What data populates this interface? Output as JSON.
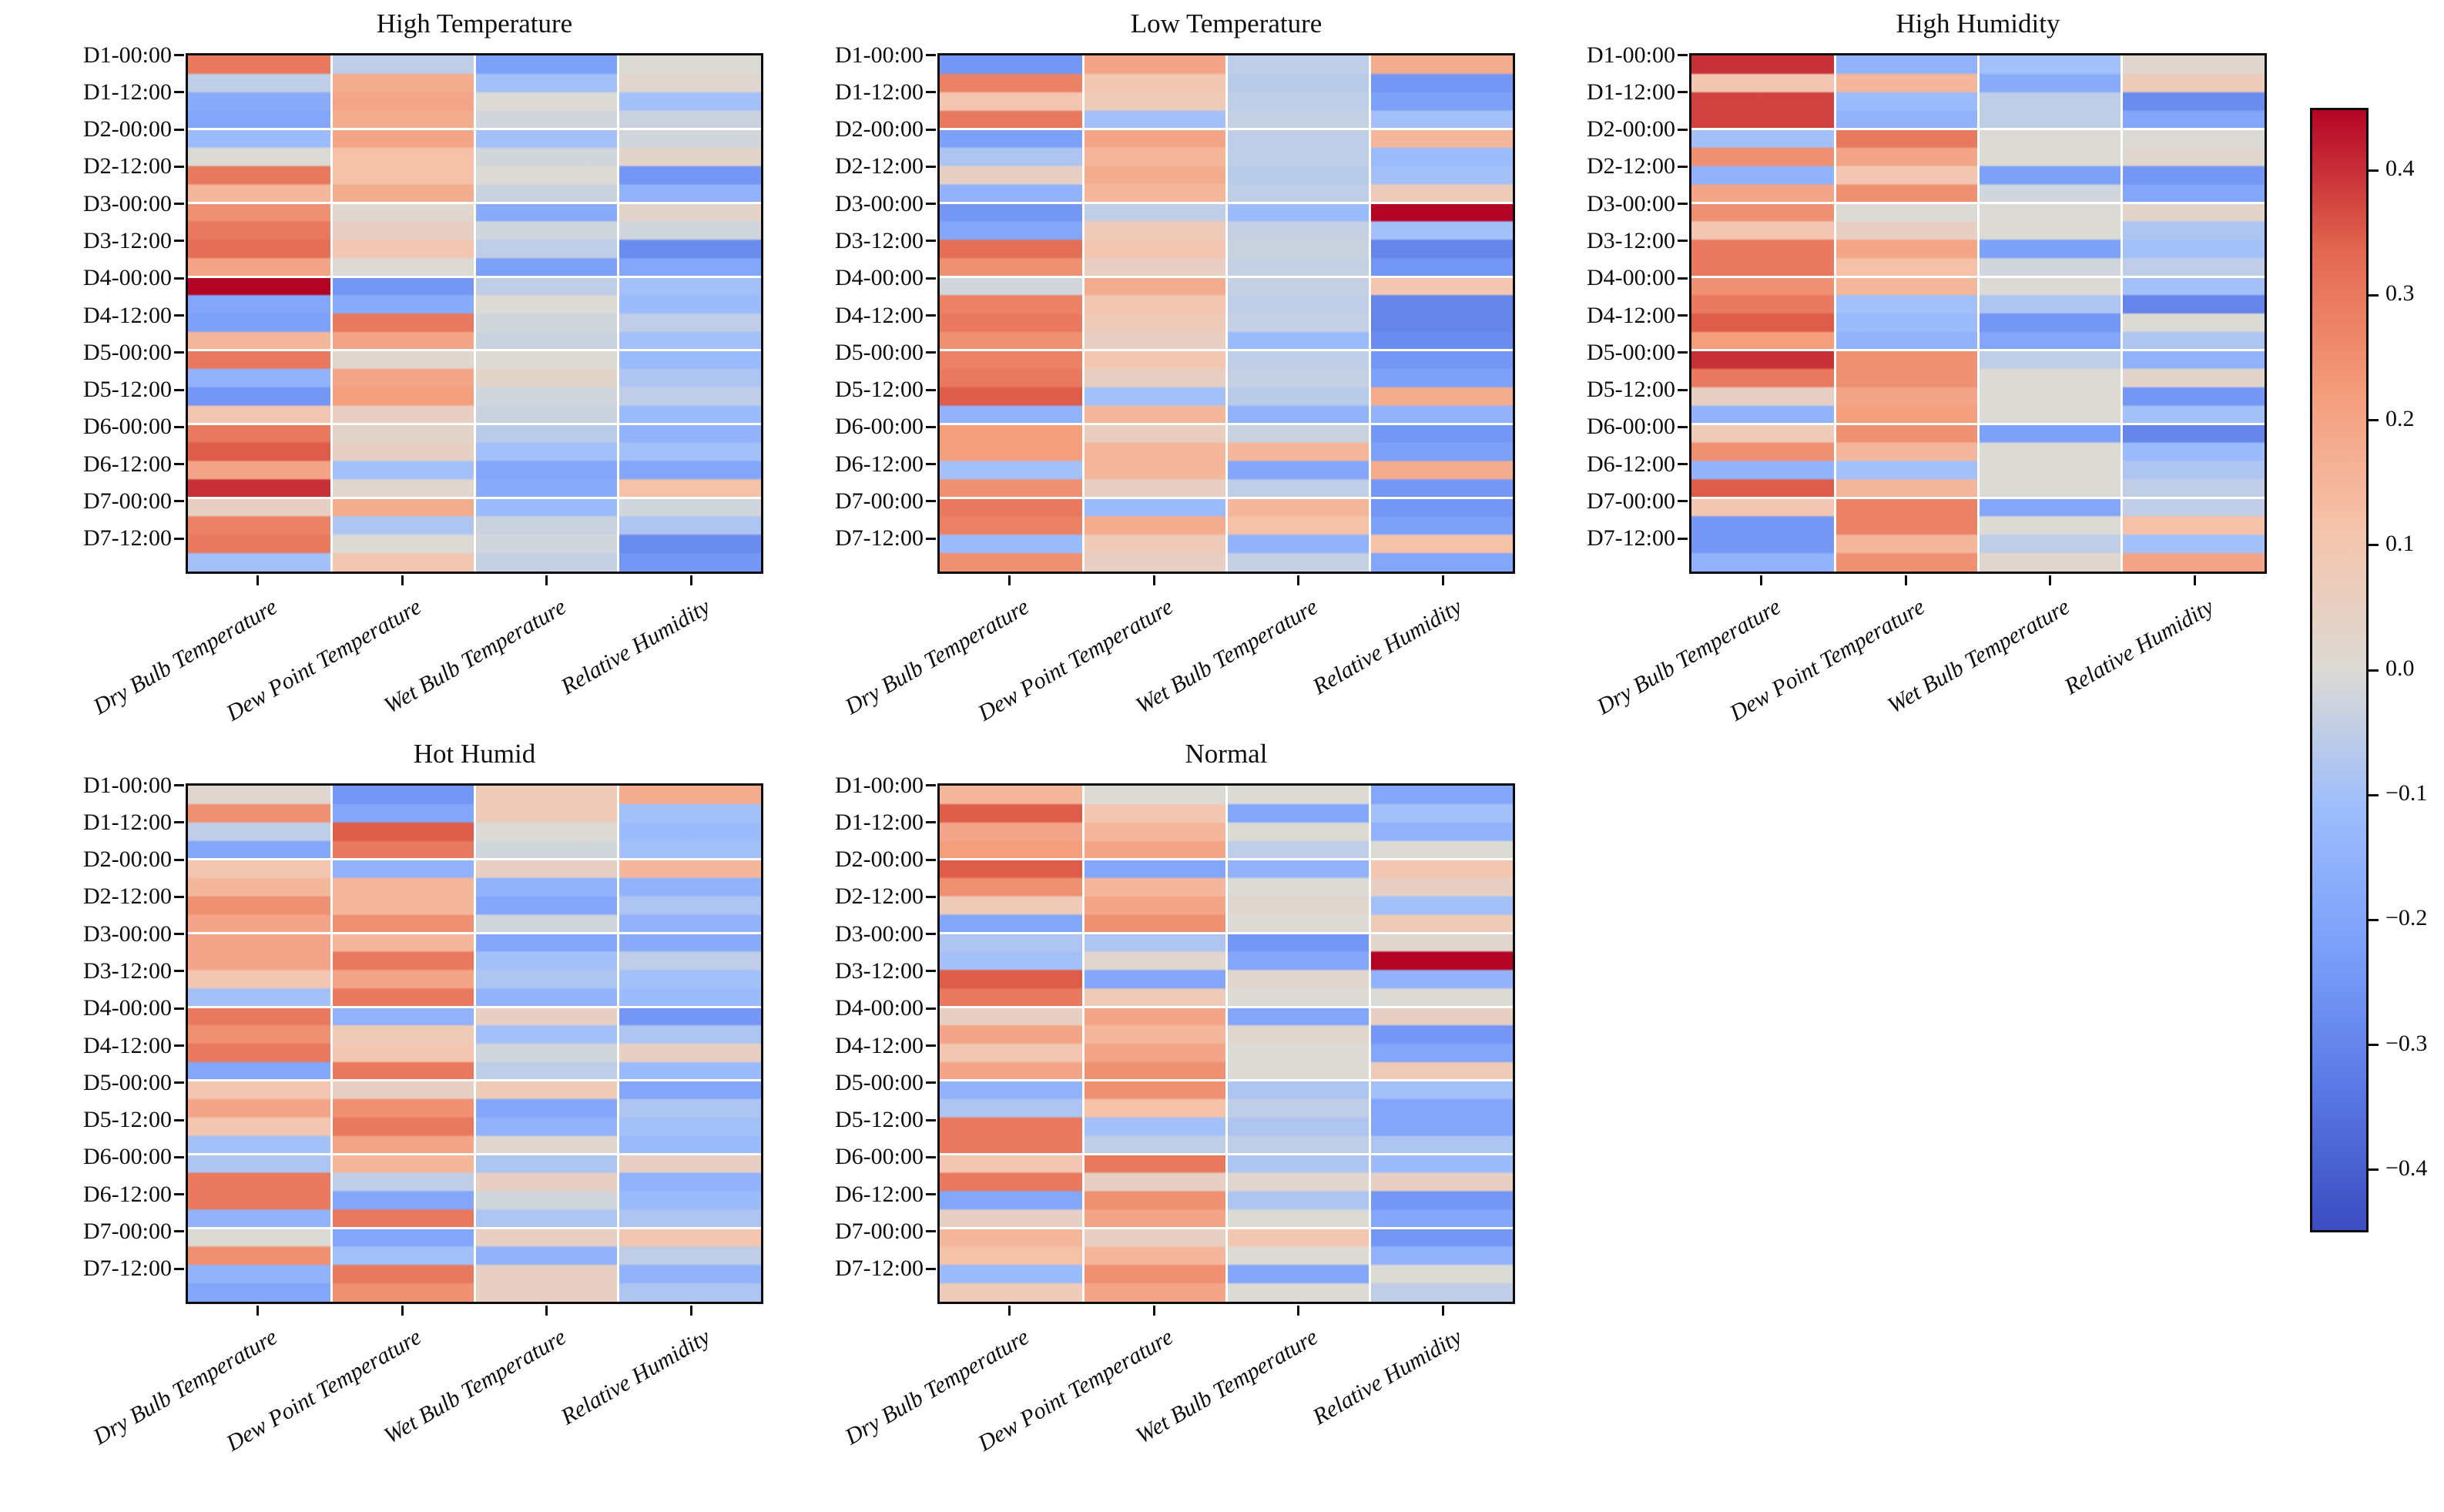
{
  "chart_data": {
    "type": "heatmap",
    "colormap": "coolwarm",
    "value_range": [
      -0.45,
      0.45
    ],
    "row_step_hours": 6,
    "days": 7,
    "grid": "off",
    "legend": "shared right colorbar",
    "colormap_anchors": [
      {
        "t": 0.0,
        "color": "#3b4cc0"
      },
      {
        "t": 0.125,
        "color": "#5a78e4"
      },
      {
        "t": 0.25,
        "color": "#7b9ff9"
      },
      {
        "t": 0.375,
        "color": "#9dbdfc"
      },
      {
        "t": 0.5,
        "color": "#dcdad5"
      },
      {
        "t": 0.625,
        "color": "#f5c4ac"
      },
      {
        "t": 0.75,
        "color": "#f49c7c"
      },
      {
        "t": 0.875,
        "color": "#e2674f"
      },
      {
        "t": 1.0,
        "color": "#b40426"
      }
    ],
    "colorbar": {
      "tick_values": [
        0.4,
        0.3,
        0.2,
        0.1,
        0.0,
        -0.1,
        -0.2,
        -0.3,
        -0.4
      ],
      "tick_labels": [
        "0.4",
        "0.3",
        "0.2",
        "0.1",
        "0.0",
        "−0.1",
        "−0.2",
        "−0.3",
        "−0.4"
      ]
    },
    "x_categories": [
      "Dry Bulb Temperature",
      "Dew Point Temperature",
      "Wet Bulb Temperature",
      "Relative Humidity"
    ],
    "y_tick_labels": [
      "D1-00:00",
      "D1-12:00",
      "D2-00:00",
      "D2-12:00",
      "D3-00:00",
      "D3-12:00",
      "D4-00:00",
      "D4-12:00",
      "D5-00:00",
      "D5-12:00",
      "D6-00:00",
      "D6-12:00",
      "D7-00:00",
      "D7-12:00"
    ],
    "panels": [
      {
        "title": "High Temperature",
        "row": 0,
        "col": 0,
        "series": [
          {
            "name": "Dry Bulb Temperature",
            "values": [
              0.3,
              -0.05,
              -0.18,
              -0.2,
              -0.12,
              0.0,
              0.3,
              0.15,
              0.25,
              0.3,
              0.32,
              0.2,
              0.45,
              -0.2,
              -0.22,
              0.15,
              0.3,
              -0.15,
              -0.25,
              0.1,
              0.3,
              0.35,
              0.2,
              0.4,
              0.05,
              0.28,
              0.3,
              -0.1
            ]
          },
          {
            "name": "Dew Point Temperature",
            "values": [
              -0.05,
              0.18,
              0.2,
              0.18,
              0.2,
              0.12,
              0.12,
              0.18,
              0.02,
              0.05,
              0.1,
              0.0,
              -0.25,
              -0.18,
              0.3,
              0.2,
              0.02,
              0.2,
              0.22,
              0.05,
              0.03,
              0.05,
              -0.1,
              0.02,
              0.18,
              -0.08,
              0.0,
              0.1
            ]
          },
          {
            "name": "Wet Bulb Temperature",
            "values": [
              -0.22,
              -0.1,
              0.0,
              -0.02,
              -0.1,
              -0.02,
              0.0,
              -0.03,
              -0.18,
              -0.02,
              -0.05,
              -0.22,
              -0.05,
              0.0,
              -0.02,
              -0.03,
              0.0,
              0.03,
              -0.02,
              -0.03,
              -0.06,
              -0.1,
              -0.2,
              -0.18,
              -0.12,
              -0.03,
              -0.02,
              -0.04
            ]
          },
          {
            "name": "Relative Humidity",
            "values": [
              0.0,
              0.02,
              -0.1,
              -0.03,
              -0.02,
              0.03,
              -0.25,
              -0.15,
              0.03,
              -0.02,
              -0.28,
              -0.2,
              -0.1,
              -0.12,
              -0.05,
              -0.1,
              -0.12,
              -0.08,
              -0.05,
              -0.12,
              -0.15,
              -0.1,
              -0.2,
              0.12,
              -0.02,
              -0.08,
              -0.28,
              -0.25
            ]
          }
        ]
      },
      {
        "title": "Low Temperature",
        "row": 0,
        "col": 1,
        "series": [
          {
            "name": "Dry Bulb Temperature",
            "values": [
              -0.25,
              0.28,
              0.1,
              0.3,
              -0.22,
              -0.08,
              0.05,
              -0.15,
              -0.25,
              -0.2,
              0.32,
              0.25,
              -0.02,
              0.28,
              0.3,
              0.25,
              0.28,
              0.3,
              0.35,
              -0.15,
              0.22,
              0.22,
              -0.1,
              0.25,
              0.3,
              0.28,
              -0.12,
              0.25
            ]
          },
          {
            "name": "Dew Point Temperature",
            "values": [
              0.2,
              0.1,
              0.08,
              -0.1,
              0.2,
              0.15,
              0.18,
              0.15,
              -0.05,
              0.08,
              0.1,
              0.05,
              0.18,
              0.1,
              0.08,
              0.05,
              0.1,
              0.05,
              -0.1,
              0.15,
              0.06,
              0.15,
              0.15,
              0.05,
              -0.12,
              0.18,
              0.08,
              0.05
            ]
          },
          {
            "name": "Wet Bulb Temperature",
            "values": [
              -0.05,
              -0.06,
              -0.05,
              -0.04,
              -0.05,
              -0.05,
              -0.06,
              -0.05,
              -0.12,
              -0.04,
              -0.03,
              -0.04,
              -0.04,
              -0.05,
              -0.04,
              -0.12,
              -0.05,
              -0.04,
              -0.06,
              -0.15,
              -0.03,
              0.15,
              -0.2,
              -0.05,
              0.15,
              0.12,
              -0.15,
              -0.04
            ]
          },
          {
            "name": "Relative Humidity",
            "values": [
              0.18,
              -0.25,
              -0.22,
              -0.1,
              0.15,
              -0.12,
              -0.1,
              0.08,
              0.45,
              -0.1,
              -0.3,
              -0.25,
              0.1,
              -0.3,
              -0.3,
              -0.28,
              -0.25,
              -0.22,
              0.18,
              -0.15,
              -0.25,
              -0.22,
              0.18,
              -0.25,
              -0.25,
              -0.22,
              0.12,
              -0.2
            ]
          }
        ]
      },
      {
        "title": "High Humidity",
        "row": 0,
        "col": 2,
        "series": [
          {
            "name": "Dry Bulb Temperature",
            "values": [
              0.4,
              0.1,
              0.38,
              0.38,
              -0.1,
              0.25,
              -0.15,
              0.2,
              0.25,
              0.1,
              0.3,
              0.3,
              0.25,
              0.3,
              0.35,
              0.22,
              0.4,
              0.3,
              0.05,
              -0.15,
              0.08,
              0.25,
              -0.15,
              0.35,
              0.1,
              -0.25,
              -0.25,
              -0.15
            ]
          },
          {
            "name": "Dew Point Temperature",
            "values": [
              -0.15,
              0.15,
              -0.12,
              -0.15,
              0.3,
              0.2,
              0.1,
              0.25,
              0.0,
              0.05,
              0.2,
              0.12,
              0.15,
              -0.1,
              -0.12,
              -0.15,
              0.25,
              0.25,
              0.2,
              0.22,
              0.25,
              0.15,
              -0.1,
              0.15,
              0.28,
              0.28,
              0.15,
              0.25
            ]
          },
          {
            "name": "Wet Bulb Temperature",
            "values": [
              -0.1,
              -0.18,
              -0.05,
              -0.05,
              0.0,
              0.0,
              -0.22,
              -0.02,
              0.0,
              0.0,
              -0.22,
              -0.02,
              0.0,
              -0.08,
              -0.25,
              -0.2,
              -0.05,
              0.0,
              0.0,
              0.0,
              -0.22,
              0.0,
              0.0,
              0.0,
              -0.2,
              0.0,
              -0.05,
              0.02
            ]
          },
          {
            "name": "Relative Humidity",
            "values": [
              0.02,
              0.08,
              -0.28,
              -0.2,
              0.0,
              0.02,
              -0.25,
              -0.2,
              0.03,
              -0.08,
              -0.1,
              -0.05,
              -0.1,
              -0.3,
              0.0,
              -0.08,
              -0.15,
              0.03,
              -0.25,
              -0.1,
              -0.3,
              -0.12,
              -0.08,
              -0.05,
              -0.05,
              0.12,
              -0.1,
              0.2
            ]
          }
        ]
      },
      {
        "title": "Hot Humid",
        "row": 1,
        "col": 0,
        "series": [
          {
            "name": "Dry Bulb Temperature",
            "values": [
              0.02,
              0.25,
              -0.05,
              -0.2,
              0.1,
              0.15,
              0.25,
              0.2,
              0.2,
              0.2,
              0.1,
              -0.1,
              0.3,
              0.25,
              0.3,
              -0.2,
              0.1,
              0.2,
              0.1,
              -0.1,
              -0.08,
              0.3,
              0.3,
              -0.15,
              0.0,
              0.25,
              -0.15,
              -0.2
            ]
          },
          {
            "name": "Dew Point Temperature",
            "values": [
              -0.25,
              -0.2,
              0.35,
              0.3,
              -0.15,
              0.15,
              0.15,
              0.25,
              0.15,
              0.3,
              0.2,
              0.3,
              -0.15,
              0.08,
              0.1,
              0.3,
              0.05,
              0.25,
              0.3,
              0.2,
              0.15,
              -0.05,
              -0.2,
              0.3,
              -0.2,
              -0.1,
              0.3,
              0.25
            ]
          },
          {
            "name": "Wet Bulb Temperature",
            "values": [
              0.08,
              0.08,
              0.0,
              -0.02,
              0.05,
              -0.15,
              -0.2,
              -0.02,
              -0.2,
              -0.1,
              -0.08,
              -0.15,
              0.05,
              -0.1,
              -0.02,
              -0.05,
              0.08,
              -0.2,
              -0.15,
              0.02,
              -0.08,
              0.05,
              -0.02,
              -0.08,
              0.05,
              -0.15,
              0.05,
              0.05
            ]
          },
          {
            "name": "Relative Humidity",
            "values": [
              0.18,
              -0.1,
              -0.12,
              -0.1,
              0.15,
              -0.15,
              -0.08,
              -0.15,
              -0.18,
              -0.05,
              -0.1,
              -0.12,
              -0.25,
              -0.08,
              0.05,
              -0.12,
              -0.2,
              -0.08,
              -0.1,
              -0.12,
              0.05,
              -0.15,
              -0.12,
              -0.08,
              0.1,
              -0.05,
              -0.15,
              -0.08
            ]
          }
        ]
      },
      {
        "title": "Normal",
        "row": 1,
        "col": 1,
        "series": [
          {
            "name": "Dry Bulb Temperature",
            "values": [
              0.15,
              0.35,
              0.2,
              0.22,
              0.35,
              0.25,
              0.08,
              -0.2,
              -0.08,
              -0.1,
              0.35,
              0.3,
              0.05,
              0.2,
              0.1,
              0.2,
              -0.15,
              -0.08,
              0.3,
              0.3,
              0.1,
              0.3,
              -0.2,
              0.05,
              0.15,
              0.12,
              -0.12,
              0.08
            ]
          },
          {
            "name": "Dew Point Temperature",
            "values": [
              0.0,
              0.1,
              0.15,
              0.2,
              -0.2,
              0.15,
              0.2,
              0.25,
              -0.08,
              0.02,
              -0.2,
              0.08,
              0.2,
              0.15,
              0.2,
              0.25,
              0.25,
              0.12,
              -0.1,
              -0.05,
              0.3,
              0.05,
              0.25,
              0.2,
              0.05,
              0.15,
              0.25,
              0.2
            ]
          },
          {
            "name": "Wet Bulb Temperature",
            "values": [
              0.0,
              -0.2,
              0.0,
              -0.05,
              -0.15,
              0.0,
              0.02,
              0.0,
              -0.25,
              -0.2,
              0.02,
              0.0,
              -0.2,
              0.02,
              0.0,
              0.0,
              -0.08,
              -0.05,
              -0.08,
              -0.05,
              -0.08,
              0.02,
              -0.08,
              0.0,
              0.1,
              0.0,
              -0.2,
              0.0
            ]
          },
          {
            "name": "Relative Humidity",
            "values": [
              -0.2,
              -0.1,
              -0.15,
              0.0,
              0.1,
              0.05,
              -0.1,
              0.08,
              0.02,
              0.45,
              -0.15,
              0.0,
              0.05,
              -0.25,
              -0.2,
              0.08,
              -0.1,
              -0.2,
              -0.2,
              -0.08,
              -0.12,
              0.05,
              -0.25,
              -0.2,
              -0.25,
              -0.15,
              0.0,
              -0.05
            ]
          }
        ]
      }
    ]
  }
}
